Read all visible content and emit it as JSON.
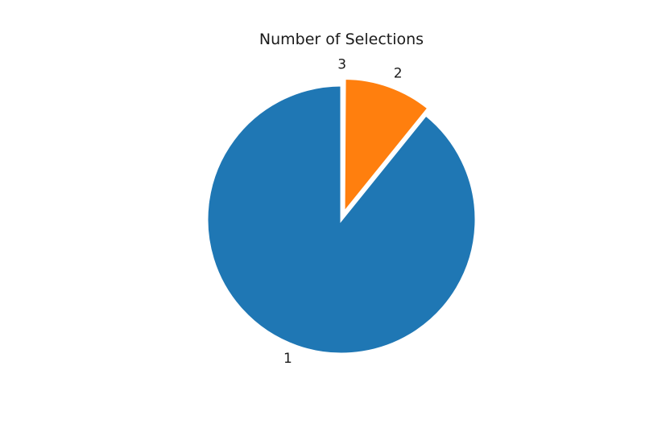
{
  "chart_data": {
    "type": "pie",
    "title": "Number of Selections",
    "slices": [
      {
        "label": "1",
        "value": 89.2,
        "color": "#1f77b4",
        "exploded": false
      },
      {
        "label": "2",
        "value": 10.7,
        "color": "#ff7f0e",
        "exploded": true
      },
      {
        "label": "3",
        "value": 0.1,
        "color": "#2ca02c",
        "exploded": true
      }
    ],
    "start_angle": 90,
    "direction": "counterclockwise"
  }
}
